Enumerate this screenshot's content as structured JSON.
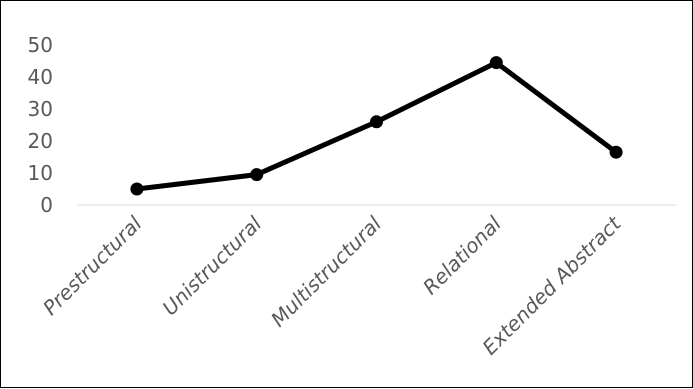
{
  "chart_data": {
    "type": "line",
    "title": "",
    "xlabel": "",
    "ylabel": "",
    "categories": [
      "Prestructural",
      "Unistructural",
      "Multistructural",
      "Relational",
      "Extended Abstract"
    ],
    "series": [
      {
        "values": [
          5,
          9.5,
          26,
          44.5,
          16.5
        ]
      }
    ],
    "ylim": [
      0,
      50
    ],
    "yticks": [
      "0",
      "10",
      "20",
      "30",
      "40",
      "50"
    ],
    "grid": false,
    "legend": "none",
    "colors": {
      "line": "#000000",
      "marker": "#000000",
      "axis": "#d9d9d9",
      "text": "#595959"
    }
  }
}
